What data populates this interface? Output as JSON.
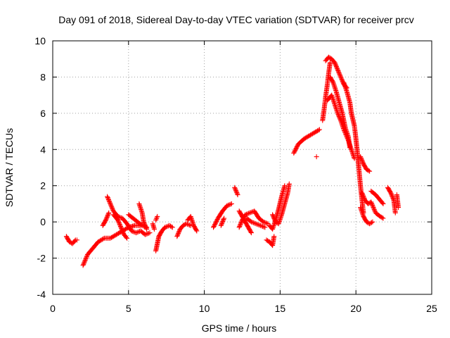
{
  "chart_data": {
    "type": "scatter",
    "title": "Day 091 of 2018, Sidereal Day-to-day VTEC variation (SDTVAR) for receiver prcv",
    "xlabel": "GPS time / hours",
    "ylabel": "SDTVAR / TECUs",
    "xlim": [
      0,
      25
    ],
    "ylim": [
      -4,
      10
    ],
    "xticks": [
      0,
      5,
      10,
      15,
      20,
      25
    ],
    "yticks": [
      -4,
      -2,
      0,
      2,
      4,
      6,
      8,
      10
    ],
    "grid": true,
    "marker": "+",
    "marker_color": "#ff0000",
    "series": [
      {
        "name": "SDTVAR",
        "segments": [
          [
            [
              0.9,
              -0.8
            ],
            [
              1.1,
              -1.1
            ],
            [
              1.3,
              -1.2
            ],
            [
              1.5,
              -1.0
            ],
            [
              1.6,
              -1.0
            ]
          ],
          [
            [
              2.0,
              -2.4
            ],
            [
              2.3,
              -1.8
            ],
            [
              2.6,
              -1.5
            ],
            [
              3.0,
              -1.1
            ],
            [
              3.4,
              -0.9
            ],
            [
              3.8,
              -0.9
            ],
            [
              4.2,
              -0.7
            ],
            [
              4.6,
              -0.5
            ],
            [
              5.0,
              -0.3
            ],
            [
              5.4,
              -0.2
            ],
            [
              5.8,
              -0.2
            ]
          ],
          [
            [
              3.3,
              -0.2
            ],
            [
              3.5,
              0.1
            ],
            [
              3.7,
              0.5
            ]
          ],
          [
            [
              3.6,
              1.4
            ],
            [
              3.8,
              1.0
            ],
            [
              4.0,
              0.6
            ],
            [
              4.3,
              0.3
            ],
            [
              4.6,
              0.2
            ],
            [
              4.9,
              -0.1
            ],
            [
              5.2,
              -0.5
            ],
            [
              5.5,
              -0.6
            ],
            [
              5.8,
              -0.5
            ],
            [
              6.1,
              -0.7
            ],
            [
              6.4,
              -0.6
            ]
          ],
          [
            [
              4.0,
              0.4
            ],
            [
              4.3,
              0.1
            ],
            [
              4.5,
              -0.3
            ],
            [
              4.7,
              -0.7
            ],
            [
              4.9,
              -0.9
            ]
          ],
          [
            [
              5.0,
              0.4
            ],
            [
              5.3,
              0.2
            ],
            [
              5.6,
              0.0
            ],
            [
              5.9,
              -0.2
            ],
            [
              6.2,
              -0.3
            ]
          ],
          [
            [
              5.7,
              1.0
            ],
            [
              5.9,
              0.5
            ],
            [
              6.0,
              0.0
            ],
            [
              6.2,
              -0.4
            ]
          ],
          [
            [
              6.6,
              -0.1
            ],
            [
              6.7,
              -0.4
            ]
          ],
          [
            [
              6.8,
              0.1
            ],
            [
              6.9,
              0.3
            ]
          ],
          [
            [
              6.8,
              -1.6
            ],
            [
              6.9,
              -1.2
            ],
            [
              7.0,
              -0.8
            ],
            [
              7.2,
              -0.5
            ],
            [
              7.4,
              -0.3
            ],
            [
              7.7,
              -0.2
            ],
            [
              7.9,
              -0.3
            ]
          ],
          [
            [
              8.2,
              -0.8
            ],
            [
              8.4,
              -0.4
            ],
            [
              8.6,
              -0.2
            ],
            [
              8.8,
              -0.1
            ],
            [
              9.1,
              -0.2
            ]
          ],
          [
            [
              8.9,
              0.1
            ],
            [
              9.1,
              0.3
            ],
            [
              9.3,
              -0.2
            ],
            [
              9.5,
              -0.5
            ]
          ],
          [
            [
              10.6,
              -0.3
            ],
            [
              10.9,
              0.2
            ],
            [
              11.2,
              0.6
            ],
            [
              11.5,
              0.9
            ],
            [
              11.8,
              1.0
            ]
          ],
          [
            [
              11.1,
              -0.2
            ],
            [
              11.3,
              0.2
            ]
          ],
          [
            [
              12.0,
              1.9
            ],
            [
              12.2,
              1.5
            ]
          ],
          [
            [
              12.3,
              0.6
            ],
            [
              12.5,
              0.3
            ],
            [
              12.7,
              0.0
            ],
            [
              12.9,
              -0.3
            ],
            [
              13.1,
              -0.6
            ]
          ],
          [
            [
              12.3,
              -0.3
            ],
            [
              12.5,
              0.1
            ],
            [
              12.7,
              0.4
            ],
            [
              13.0,
              0.5
            ],
            [
              13.3,
              0.6
            ],
            [
              13.6,
              0.2
            ],
            [
              13.9,
              0.0
            ],
            [
              14.2,
              -0.1
            ]
          ],
          [
            [
              12.8,
              0.2
            ],
            [
              13.1,
              0.0
            ],
            [
              13.4,
              -0.1
            ],
            [
              13.7,
              -0.2
            ],
            [
              14.0,
              -0.3
            ]
          ],
          [
            [
              14.1,
              -1.0
            ],
            [
              14.3,
              -1.1
            ],
            [
              14.5,
              -1.3
            ],
            [
              14.6,
              -0.8
            ]
          ],
          [
            [
              14.3,
              -0.2
            ],
            [
              14.5,
              -0.4
            ],
            [
              14.7,
              0.1
            ],
            [
              14.9,
              0.7
            ],
            [
              15.1,
              1.4
            ],
            [
              15.3,
              2.0
            ]
          ],
          [
            [
              14.5,
              0.4
            ],
            [
              14.7,
              0.0
            ],
            [
              14.9,
              -0.1
            ],
            [
              15.1,
              0.4
            ],
            [
              15.3,
              1.0
            ],
            [
              15.5,
              1.6
            ],
            [
              15.6,
              2.1
            ]
          ],
          [
            [
              15.9,
              3.8
            ],
            [
              16.2,
              4.3
            ],
            [
              16.6,
              4.6
            ],
            [
              17.0,
              4.8
            ],
            [
              17.4,
              5.0
            ],
            [
              17.6,
              5.1
            ]
          ],
          [
            [
              17.4,
              3.6
            ]
          ],
          [
            [
              17.8,
              5.6
            ],
            [
              17.9,
              6.2
            ],
            [
              18.0,
              6.9
            ],
            [
              18.1,
              7.5
            ],
            [
              18.2,
              8.2
            ],
            [
              18.3,
              8.8
            ]
          ],
          [
            [
              18.0,
              8.9
            ],
            [
              18.2,
              9.1
            ],
            [
              18.4,
              9.0
            ],
            [
              18.6,
              8.8
            ],
            [
              18.8,
              8.4
            ],
            [
              19.0,
              8.0
            ],
            [
              19.2,
              7.6
            ],
            [
              19.4,
              7.4
            ]
          ],
          [
            [
              18.3,
              8.0
            ],
            [
              18.5,
              7.7
            ],
            [
              18.7,
              7.2
            ],
            [
              18.9,
              6.6
            ],
            [
              19.1,
              6.0
            ],
            [
              19.3,
              5.2
            ],
            [
              19.5,
              4.7
            ],
            [
              19.6,
              4.1
            ]
          ],
          [
            [
              18.1,
              6.7
            ],
            [
              18.4,
              7.0
            ],
            [
              18.6,
              6.5
            ],
            [
              18.8,
              6.0
            ],
            [
              19.0,
              5.6
            ],
            [
              19.2,
              5.1
            ],
            [
              19.5,
              4.5
            ],
            [
              19.7,
              4.0
            ],
            [
              19.9,
              3.5
            ]
          ],
          [
            [
              19.2,
              7.7
            ],
            [
              19.4,
              7.2
            ],
            [
              19.6,
              6.6
            ],
            [
              19.7,
              6.0
            ],
            [
              19.9,
              5.3
            ],
            [
              20.0,
              4.6
            ],
            [
              20.1,
              3.8
            ],
            [
              20.2,
              2.9
            ],
            [
              20.3,
              2.0
            ],
            [
              20.4,
              1.2
            ],
            [
              20.5,
              0.5
            ]
          ],
          [
            [
              20.3,
              3.6
            ],
            [
              20.5,
              3.2
            ],
            [
              20.7,
              2.9
            ],
            [
              20.9,
              2.8
            ]
          ],
          [
            [
              20.3,
              0.8
            ],
            [
              20.5,
              0.3
            ],
            [
              20.7,
              0.0
            ],
            [
              20.9,
              -0.1
            ],
            [
              21.1,
              0.0
            ]
          ],
          [
            [
              20.4,
              1.6
            ],
            [
              20.6,
              1.2
            ],
            [
              20.8,
              1.0
            ],
            [
              21.0,
              1.1
            ],
            [
              21.3,
              0.5
            ],
            [
              21.6,
              0.3
            ],
            [
              21.8,
              0.2
            ]
          ],
          [
            [
              21.0,
              1.7
            ],
            [
              21.3,
              1.5
            ],
            [
              21.6,
              1.2
            ],
            [
              21.8,
              1.0
            ]
          ],
          [
            [
              22.1,
              1.9
            ],
            [
              22.3,
              1.6
            ],
            [
              22.5,
              1.2
            ],
            [
              22.6,
              0.5
            ]
          ],
          [
            [
              22.7,
              1.5
            ],
            [
              22.8,
              0.8
            ]
          ]
        ]
      }
    ]
  }
}
